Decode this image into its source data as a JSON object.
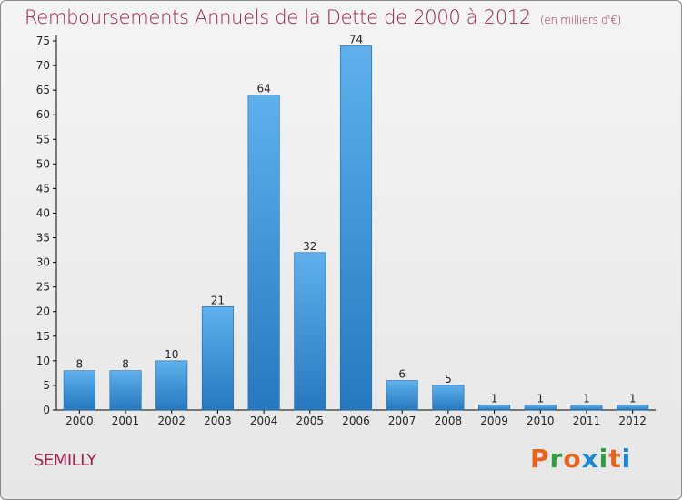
{
  "header": {
    "title": "Remboursements Annuels de la Dette de 2000 à 2012",
    "subtitle": "(en milliers d'€)"
  },
  "footer": {
    "commune": "SEMILLY",
    "logo_letters": [
      "P",
      "r",
      "o",
      "x",
      "i",
      "t",
      "i"
    ]
  },
  "colors": {
    "title": "#a0204e",
    "bar_top": "#5fb0ec",
    "bar_bottom": "#2778bf",
    "axis": "#000000",
    "grid": "#cfcfcf",
    "logo": [
      "#e8641e",
      "#2e9e3e",
      "#e8641e",
      "#1a86d6",
      "#2e9e3e",
      "#e8641e",
      "#1a86d6"
    ]
  },
  "chart_data": {
    "type": "bar",
    "categories": [
      "2000",
      "2001",
      "2002",
      "2003",
      "2004",
      "2005",
      "2006",
      "2007",
      "2008",
      "2009",
      "2010",
      "2011",
      "2012"
    ],
    "values": [
      8,
      8,
      10,
      21,
      64,
      32,
      74,
      6,
      5,
      1,
      1,
      1,
      1
    ],
    "title": "Remboursements Annuels de la Dette de 2000 à 2012",
    "subtitle": "(en milliers d'€)",
    "xlabel": "",
    "ylabel": "",
    "ylim": [
      0,
      75
    ],
    "yticks": [
      0,
      5,
      10,
      15,
      20,
      25,
      30,
      35,
      40,
      45,
      50,
      55,
      60,
      65,
      70,
      75
    ],
    "grid": false,
    "legend": "none"
  }
}
